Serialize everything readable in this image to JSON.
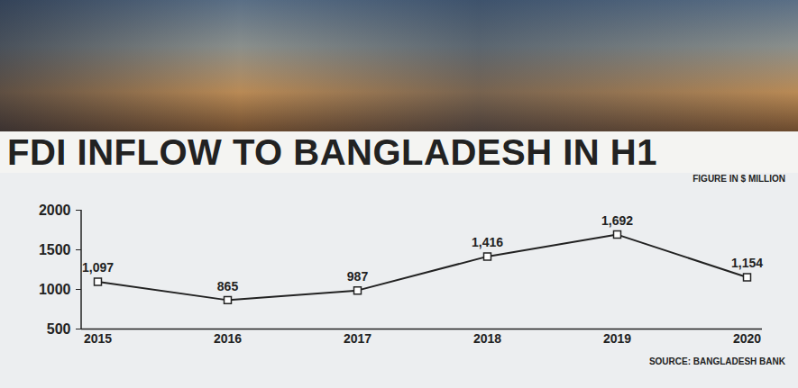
{
  "chart_data": {
    "type": "line",
    "title": "FDI INFLOW TO BANGLADESH IN H1",
    "subtitle": "FIGURE IN $ MILLION",
    "source": "SOURCE: BANGLADESH BANK",
    "categories": [
      "2015",
      "2016",
      "2017",
      "2018",
      "2019",
      "2020"
    ],
    "values": [
      1097,
      865,
      987,
      1416,
      1692,
      1154
    ],
    "value_labels": [
      "1,097",
      "865",
      "987",
      "1,416",
      "1,692",
      "1,154"
    ],
    "color": "#222222",
    "marker": "square",
    "ylim": [
      500,
      2000
    ],
    "yticks": [
      500,
      1000,
      1500,
      2000
    ],
    "grid": false,
    "data_labels": true
  }
}
